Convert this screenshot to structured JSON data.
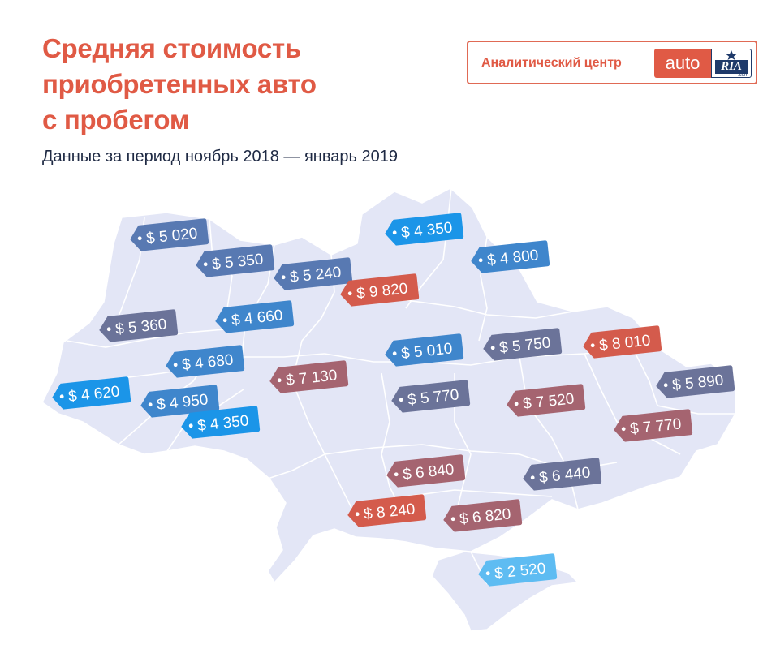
{
  "header": {
    "title_lines": [
      "Средняя стоимость",
      "приобретенных авто",
      "с пробегом"
    ],
    "subtitle": "Данные за период ноябрь 2018 — январь 2019"
  },
  "brand": {
    "caption": "Аналитический центр",
    "logo_auto": "auto",
    "logo_ria": "RIA",
    "logo_domain": ".com",
    "accent": "#e05a45",
    "navy": "#1f3a6a"
  },
  "map": {
    "land_color": "#e3e6f6",
    "border_color": "#ffffff",
    "tags": [
      {
        "label": "$ 5 020",
        "category": "slate-blue"
      },
      {
        "label": "$ 5 350",
        "category": "slate-blue"
      },
      {
        "label": "$ 5 240",
        "category": "slate-blue"
      },
      {
        "label": "$ 4 350",
        "category": "bright-blue"
      },
      {
        "label": "$ 4 800",
        "category": "mid-blue"
      },
      {
        "label": "$ 9 820",
        "category": "red"
      },
      {
        "label": "$ 4 660",
        "category": "mid-blue"
      },
      {
        "label": "$ 5 360",
        "category": "slate"
      },
      {
        "label": "$ 4 680",
        "category": "mid-blue"
      },
      {
        "label": "$ 5 010",
        "category": "mid-blue"
      },
      {
        "label": "$ 5 750",
        "category": "slate"
      },
      {
        "label": "$ 8 010",
        "category": "red"
      },
      {
        "label": "$ 7 130",
        "category": "mauve"
      },
      {
        "label": "$ 4 620",
        "category": "bright-blue"
      },
      {
        "label": "$ 4 950",
        "category": "mid-blue"
      },
      {
        "label": "$ 4 350",
        "category": "bright-blue"
      },
      {
        "label": "$ 5 770",
        "category": "slate"
      },
      {
        "label": "$ 7 520",
        "category": "mauve"
      },
      {
        "label": "$ 5 890",
        "category": "slate"
      },
      {
        "label": "$ 7 770",
        "category": "mauve"
      },
      {
        "label": "$ 6 840",
        "category": "mauve"
      },
      {
        "label": "$ 6 440",
        "category": "slate"
      },
      {
        "label": "$ 8 240",
        "category": "red"
      },
      {
        "label": "$ 6 820",
        "category": "mauve"
      },
      {
        "label": "$ 2 520",
        "category": "light-blue"
      }
    ],
    "category_colors": {
      "slate-blue": "#5879b2",
      "bright-blue": "#1b95e8",
      "mid-blue": "#3f86cc",
      "red": "#d45b4c",
      "slate": "#6b7399",
      "mauve": "#a56470",
      "light-blue": "#5ebcf2"
    }
  }
}
